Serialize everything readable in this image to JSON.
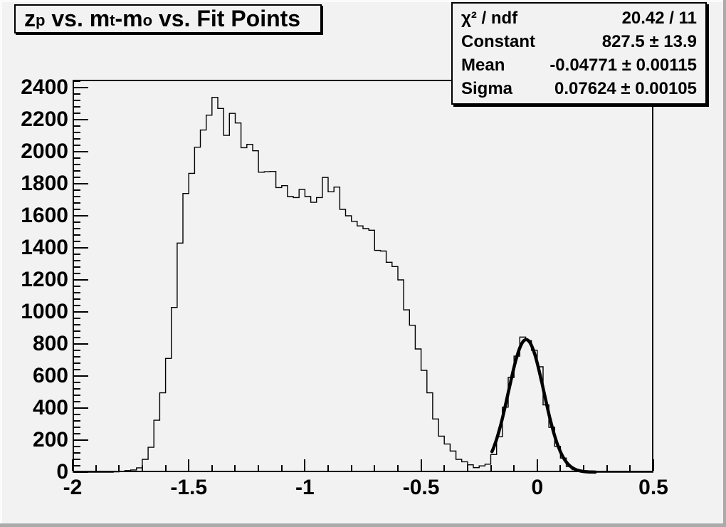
{
  "colors": {
    "canvas_bg": "#f2f2f2",
    "bevel_light": "#fbfbfb",
    "bevel_dark": "#aaaaaa",
    "frame_border": "#000000",
    "histogram_line": "#000000",
    "fit_line": "#000000",
    "text": "#000000"
  },
  "title": {
    "p1": "z",
    "s1": "p",
    "p2": " vs. m",
    "s2": "t",
    "p3": "-m",
    "s3": "o",
    "p4": " vs. Fit Points"
  },
  "stats": {
    "rows": [
      {
        "label": "χ² / ndf",
        "value": "20.42 / 11"
      },
      {
        "label": "Constant",
        "value": "827.5 ± 13.9"
      },
      {
        "label": "Mean",
        "value": "-0.04771 ± 0.00115"
      },
      {
        "label": "Sigma",
        "value": "0.07624 ± 0.00105"
      }
    ]
  },
  "chart_data": {
    "type": "bar",
    "subtype": "step-histogram-with-gaussian-fit",
    "title": "z_p vs. m_t-m_o vs. Fit Points",
    "xlabel": "",
    "ylabel": "",
    "grid": false,
    "legend": null,
    "xlim": [
      -2.0,
      0.5
    ],
    "ylim": [
      0,
      2449
    ],
    "x_start": -2.0,
    "bin_width": 0.025,
    "bins": [
      0,
      0,
      0,
      0,
      0,
      0,
      0,
      2,
      5,
      10,
      14,
      27,
      80,
      155,
      324,
      495,
      710,
      1028,
      1430,
      1739,
      1865,
      2028,
      2135,
      2228,
      2339,
      2270,
      2102,
      2239,
      2179,
      2025,
      2046,
      2006,
      1872,
      1875,
      1877,
      1776,
      1788,
      1720,
      1714,
      1764,
      1720,
      1684,
      1714,
      1839,
      1750,
      1779,
      1640,
      1600,
      1566,
      1537,
      1520,
      1510,
      1384,
      1380,
      1310,
      1283,
      1200,
      1013,
      917,
      769,
      635,
      495,
      332,
      225,
      176,
      132,
      80,
      65,
      46,
      28,
      39,
      50,
      110,
      221,
      406,
      591,
      724,
      843,
      821,
      761,
      658,
      420,
      280,
      161,
      88,
      35,
      15,
      7,
      4,
      2,
      0,
      0,
      0,
      0,
      0,
      0,
      0,
      0,
      0,
      0
    ],
    "x_major_ticks": [
      -2,
      -1.5,
      -1,
      -0.5,
      0,
      0.5
    ],
    "x_tick_labels": [
      "-2",
      "-1.5",
      "-1",
      "-0.5",
      "0",
      "0.5"
    ],
    "x_minor_step": 0.1,
    "y_major_ticks": [
      0,
      200,
      400,
      600,
      800,
      1000,
      1200,
      1400,
      1600,
      1800,
      2000,
      2200,
      2400
    ],
    "y_tick_labels": [
      "0",
      "200",
      "400",
      "600",
      "800",
      "1000",
      "1200",
      "1400",
      "1600",
      "1800",
      "2000",
      "2200",
      "2400"
    ],
    "y_minor_step": 40,
    "fit": {
      "type": "gaussian",
      "constant": 827.5,
      "mean": -0.04771,
      "sigma": 0.07624,
      "chi2": 20.42,
      "ndf": 11,
      "draw_range": [
        -0.195,
        0.25
      ]
    }
  }
}
